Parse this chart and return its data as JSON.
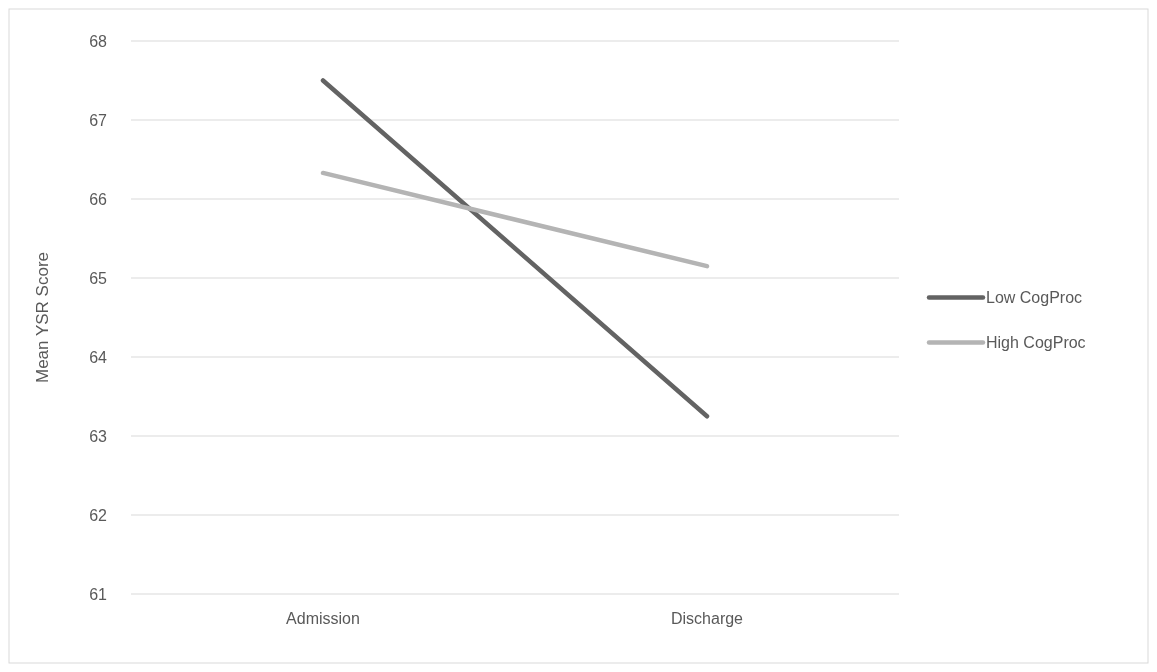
{
  "chart_data": {
    "type": "line",
    "ylabel": "Mean YSR Score",
    "categories": [
      "Admission",
      "Discharge"
    ],
    "series": [
      {
        "name": "Low CogProc",
        "color": "#636363",
        "values": [
          67.5,
          63.25
        ]
      },
      {
        "name": "High CogProc",
        "color": "#b4b4b4",
        "values": [
          66.33,
          65.15
        ]
      }
    ],
    "ylim": [
      61,
      68
    ],
    "yticks": [
      61,
      62,
      63,
      64,
      65,
      66,
      67,
      68
    ],
    "grid": "y",
    "legend": "right",
    "marker": "none",
    "line_style": "solid"
  }
}
